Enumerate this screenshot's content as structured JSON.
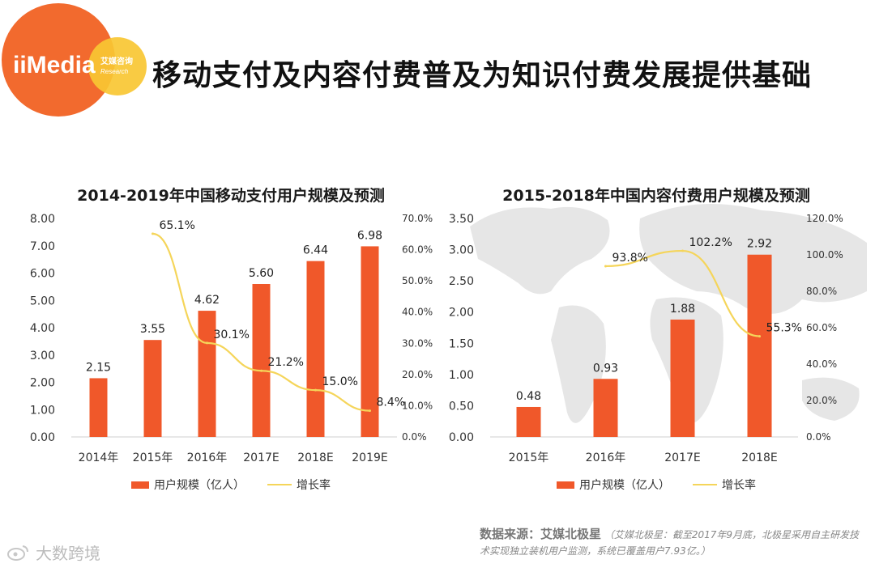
{
  "brand": {
    "logo_text": "iiMedia",
    "logo_sub_cn": "艾媒咨询",
    "logo_sub_en": "Research",
    "accent": "#f0582a",
    "logo_orange": "#f26a2e",
    "logo_yellow": "#f9c733",
    "line_color": "#f5d55a"
  },
  "page": {
    "title": "移动支付及内容付费普及为知识付费发展提供基础"
  },
  "chart_data": [
    {
      "type": "bar",
      "title": "2014-2019年中国移动支付用户规模及预测",
      "categories": [
        "2014年",
        "2015年",
        "2016年",
        "2017E",
        "2018E",
        "2019E"
      ],
      "series": [
        {
          "name": "用户规模（亿人）",
          "type": "bar",
          "axis": "left",
          "values": [
            2.15,
            3.55,
            4.62,
            5.6,
            6.44,
            6.98
          ],
          "labels": [
            "2.15",
            "3.55",
            "4.62",
            "5.60",
            "6.44",
            "6.98"
          ]
        },
        {
          "name": "增长率",
          "type": "line",
          "axis": "right",
          "values": [
            null,
            65.1,
            30.1,
            21.2,
            15.0,
            8.4
          ],
          "labels": [
            "",
            "65.1%",
            "30.1%",
            "21.2%",
            "15.0%",
            "8.4%"
          ]
        }
      ],
      "ylim": [
        0,
        8
      ],
      "yticks": [
        "0.00",
        "1.00",
        "2.00",
        "3.00",
        "4.00",
        "5.00",
        "6.00",
        "7.00",
        "8.00"
      ],
      "y2lim": [
        0,
        70
      ],
      "y2ticks": [
        "0.0%",
        "10.0%",
        "20.0%",
        "30.0%",
        "40.0%",
        "50.0%",
        "60.0%",
        "70.0%"
      ],
      "legend": [
        "用户规模（亿人）",
        "增长率"
      ]
    },
    {
      "type": "bar",
      "title": "2015-2018年中国内容付费用户规模及预测",
      "categories": [
        "2015年",
        "2016年",
        "2017E",
        "2018E"
      ],
      "series": [
        {
          "name": "用户规模（亿人）",
          "type": "bar",
          "axis": "left",
          "values": [
            0.48,
            0.93,
            1.88,
            2.92
          ],
          "labels": [
            "0.48",
            "0.93",
            "1.88",
            "2.92"
          ]
        },
        {
          "name": "增长率",
          "type": "line",
          "axis": "right",
          "values": [
            null,
            93.8,
            102.2,
            55.3
          ],
          "labels": [
            "",
            "93.8%",
            "102.2%",
            "55.3%"
          ]
        }
      ],
      "ylim": [
        0,
        3.5
      ],
      "yticks": [
        "0.00",
        "0.50",
        "1.00",
        "1.50",
        "2.00",
        "2.50",
        "3.00",
        "3.50"
      ],
      "y2lim": [
        0,
        120
      ],
      "y2ticks": [
        "0.0%",
        "20.0%",
        "40.0%",
        "60.0%",
        "80.0%",
        "100.0%",
        "120.0%"
      ],
      "legend": [
        "用户规模（亿人）",
        "增长率"
      ]
    }
  ],
  "source": {
    "head": "数据来源：艾媒北极星",
    "note": "（艾媒北极星：截至2017年9月底，北极星采用自主研发技术实现独立装机用户监测，系统已覆盖用户7.93亿。）"
  },
  "watermark": {
    "text": "大数跨境"
  }
}
